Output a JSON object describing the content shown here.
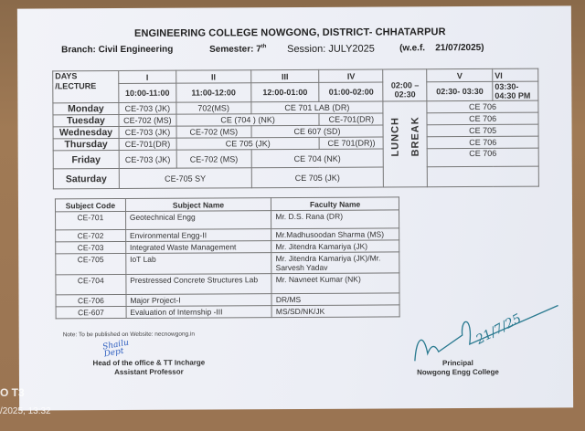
{
  "header": {
    "college": "ENGINEERING COLLEGE NOWGONG, DISTRICT- CHHATARPUR",
    "branch": "Branch: Civil Engineering",
    "semester": "Semester: 7",
    "semester_sup": "th",
    "session": "Session: JULY2025",
    "wef": "(w.e.f.",
    "wef_date": "21/07/2025)"
  },
  "timetable": {
    "days_header": "DAYS /LECTURE",
    "lectures": [
      {
        "num": "I",
        "time": "10:00-11:00"
      },
      {
        "num": "II",
        "time": "11:00-12:00"
      },
      {
        "num": "III",
        "time": "12:00-01:00"
      },
      {
        "num": "IV",
        "time": "01:00-02:00"
      },
      {
        "num": "",
        "time": "02:00 – 02:30"
      },
      {
        "num": "V",
        "time": "02:30- 03:30"
      },
      {
        "num": "VI",
        "time": "03:30- 04:30 PM"
      }
    ],
    "lunch": [
      "LUNCH",
      "BREAK"
    ],
    "rows": [
      {
        "day": "Monday",
        "cells": [
          "CE-703 (JK)",
          "702(MS)",
          "CE 701 LAB (DR)",
          "CE 706"
        ]
      },
      {
        "day": "Tuesday",
        "cells": [
          "CE-702 (MS)",
          "CE (704 ) (NK)",
          "CE-701(DR)",
          "CE 706"
        ]
      },
      {
        "day": "Wednesday",
        "cells": [
          "CE-703 (JK)",
          "CE-702 (MS)",
          "CE 607 (SD)",
          "CE 705"
        ]
      },
      {
        "day": "Thursday",
        "cells": [
          "CE-701(DR)",
          "CE 705 (JK)",
          "CE 701(DR))",
          "CE 706"
        ]
      },
      {
        "day": "Friday",
        "cells": [
          "CE-703 (JK)",
          "CE-702 (MS)",
          "CE 704 (NK)",
          "CE 706"
        ]
      },
      {
        "day": "Saturday",
        "cells": [
          "CE-705 SY",
          "CE 705 (JK)",
          ""
        ]
      }
    ]
  },
  "subjects": {
    "headers": [
      "Subject Code",
      "Subject Name",
      "Faculty Name"
    ],
    "rows": [
      [
        "CE-701",
        "Geotechnical Engg",
        "Mr. D.S. Rana (DR)"
      ],
      [
        "CE-702",
        "Environmental Engg-II",
        "Mr.Madhusoodan Sharma (MS)"
      ],
      [
        "CE-703",
        "Integrated Waste Management",
        "Mr. Jitendra Kamariya (JK)"
      ],
      [
        "CE-705",
        "IoT Lab",
        "Mr. Jitendra Kamariya (JK)/Mr. Sarvesh Yadav"
      ],
      [
        "CE-704",
        "Prestressed Concrete Structures Lab",
        "Mr. Navneet Kumar (NK)"
      ],
      [
        "CE-706",
        "Major Project-I",
        "DR/MS"
      ],
      [
        "CE-607",
        "Evaluation of Internship -III",
        "MS/SD/NK/JK"
      ]
    ]
  },
  "note": "Note: To be published on Website: necnowgong.in",
  "signatures": {
    "left": [
      "Head of the office & TT Incharge",
      "Assistant Professor"
    ],
    "left_handwriting": "Shailu Dept",
    "right": [
      "Principal",
      "Nowgong Engg College"
    ],
    "right_handwriting": "21/7/25"
  },
  "watermark": {
    "device": "O T3",
    "datetime": "/2025, 13:32"
  }
}
